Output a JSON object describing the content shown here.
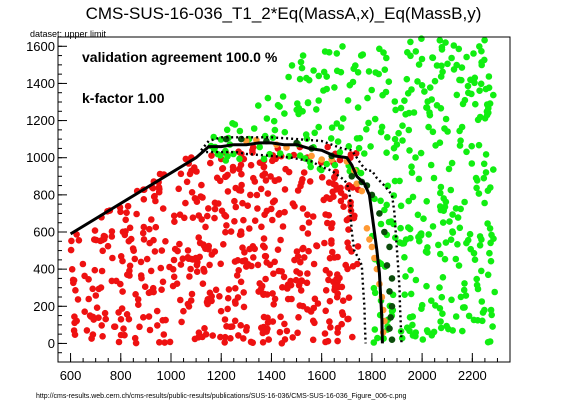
{
  "title": "CMS-SUS-16-036_T1_2*Eq(MassA,x)_Eq(MassB,y)",
  "dataset_label": "dataset: upper limit",
  "source_url": "http://cms-results.web.cern.ch/cms-results/public-results/publications/SUS-16-036/CMS-SUS-16-036_Figure_006-c.png",
  "colors": {
    "excluded": "#ee1111",
    "allowed": "#11ee11",
    "border_excluded": "#ff9933",
    "border_allowed": "#0b4d0b",
    "contour": "#000000"
  },
  "chart_data": {
    "type": "scatter",
    "title": "CMS-SUS-16-036_T1_2*Eq(MassA,x)_Eq(MassB,y)",
    "xlabel": "",
    "ylabel": "",
    "xlim": [
      550,
      2350
    ],
    "ylim": [
      -100,
      1650
    ],
    "x_ticks": [
      600,
      800,
      1000,
      1200,
      1400,
      1600,
      1800,
      2000,
      2200
    ],
    "y_ticks": [
      0,
      200,
      400,
      600,
      800,
      1000,
      1200,
      1400,
      1600
    ],
    "grid": false,
    "annotations": [
      "validation agreement 100.0 %",
      "k-factor 1.00"
    ],
    "series": [
      {
        "role": "excluded",
        "color": "#ee1111",
        "shape": "triangle",
        "vertices": [
          [
            600,
            580
          ],
          [
            1100,
            1060
          ],
          [
            1750,
            1060
          ],
          [
            1750,
            0
          ],
          [
            600,
            0
          ]
        ],
        "approx_points": 560
      },
      {
        "role": "allowed",
        "color": "#11ee11",
        "vertices": [
          [
            1060,
            1000
          ],
          [
            1350,
            1300
          ],
          [
            1500,
            1560
          ],
          [
            1900,
            1650
          ],
          [
            2290,
            1640
          ],
          [
            2290,
            0
          ],
          [
            1800,
            0
          ],
          [
            1800,
            900
          ]
        ],
        "approx_points": 420
      },
      {
        "role": "border-excluded",
        "color": "#ff9933",
        "points": [
          [
            1300,
            1090
          ],
          [
            1340,
            1095
          ],
          [
            1420,
            1070
          ],
          [
            1460,
            1055
          ],
          [
            1560,
            1010
          ],
          [
            1600,
            990
          ],
          [
            1640,
            990
          ],
          [
            1700,
            980
          ],
          [
            1730,
            930
          ],
          [
            1740,
            860
          ],
          [
            1760,
            820
          ],
          [
            1780,
            620
          ],
          [
            1790,
            560
          ],
          [
            1800,
            520
          ],
          [
            1810,
            460
          ],
          [
            1820,
            400
          ],
          [
            1830,
            320
          ],
          [
            1840,
            250
          ],
          [
            1845,
            180
          ],
          [
            1850,
            120
          ],
          [
            1845,
            60
          ]
        ]
      },
      {
        "role": "border-allowed",
        "color": "#0b4d0b",
        "points": [
          [
            1220,
            1100
          ],
          [
            1280,
            1100
          ],
          [
            1380,
            1090
          ],
          [
            1500,
            1080
          ],
          [
            1560,
            1050
          ],
          [
            1640,
            1010
          ],
          [
            1720,
            900
          ],
          [
            1760,
            870
          ],
          [
            1780,
            850
          ],
          [
            1800,
            800
          ],
          [
            1830,
            700
          ],
          [
            1850,
            600
          ],
          [
            1870,
            520
          ],
          [
            1860,
            420
          ],
          [
            1880,
            350
          ],
          [
            1870,
            280
          ],
          [
            1880,
            200
          ],
          [
            1875,
            140
          ],
          [
            1870,
            80
          ],
          [
            1880,
            20
          ]
        ]
      }
    ],
    "contours": [
      {
        "style": "solid",
        "points": [
          [
            600,
            590
          ],
          [
            1100,
            1000
          ],
          [
            1150,
            1060
          ],
          [
            1200,
            1060
          ],
          [
            1250,
            1070
          ],
          [
            1300,
            1070
          ],
          [
            1350,
            1080
          ],
          [
            1400,
            1080
          ],
          [
            1450,
            1070
          ],
          [
            1500,
            1070
          ],
          [
            1550,
            1050
          ],
          [
            1600,
            1040
          ],
          [
            1650,
            1010
          ],
          [
            1700,
            1000
          ],
          [
            1720,
            960
          ],
          [
            1740,
            900
          ],
          [
            1770,
            860
          ],
          [
            1790,
            800
          ],
          [
            1800,
            700
          ],
          [
            1810,
            600
          ],
          [
            1820,
            500
          ],
          [
            1830,
            380
          ],
          [
            1835,
            250
          ],
          [
            1840,
            130
          ],
          [
            1842,
            0
          ]
        ]
      },
      {
        "style": "dotted",
        "points": [
          [
            1120,
            1040
          ],
          [
            1150,
            1090
          ],
          [
            1200,
            1110
          ],
          [
            1300,
            1110
          ],
          [
            1400,
            1110
          ],
          [
            1500,
            1100
          ],
          [
            1600,
            1090
          ],
          [
            1680,
            1050
          ],
          [
            1720,
            1040
          ],
          [
            1760,
            960
          ],
          [
            1780,
            930
          ],
          [
            1800,
            930
          ],
          [
            1820,
            890
          ],
          [
            1850,
            850
          ],
          [
            1880,
            800
          ],
          [
            1890,
            700
          ],
          [
            1895,
            600
          ],
          [
            1900,
            500
          ],
          [
            1905,
            400
          ],
          [
            1910,
            300
          ],
          [
            1912,
            200
          ],
          [
            1915,
            100
          ],
          [
            1918,
            0
          ]
        ]
      },
      {
        "style": "dotted",
        "points": [
          [
            1120,
            1030
          ],
          [
            1200,
            1030
          ],
          [
            1260,
            1030
          ],
          [
            1300,
            1020
          ],
          [
            1400,
            1010
          ],
          [
            1480,
            1000
          ],
          [
            1520,
            990
          ],
          [
            1560,
            980
          ],
          [
            1600,
            950
          ],
          [
            1640,
            930
          ],
          [
            1670,
            900
          ],
          [
            1690,
            880
          ],
          [
            1700,
            860
          ],
          [
            1710,
            820
          ],
          [
            1715,
            760
          ],
          [
            1715,
            700
          ],
          [
            1720,
            600
          ],
          [
            1730,
            500
          ],
          [
            1750,
            450
          ],
          [
            1760,
            420
          ],
          [
            1765,
            300
          ],
          [
            1770,
            200
          ],
          [
            1772,
            100
          ],
          [
            1775,
            0
          ]
        ]
      }
    ]
  }
}
